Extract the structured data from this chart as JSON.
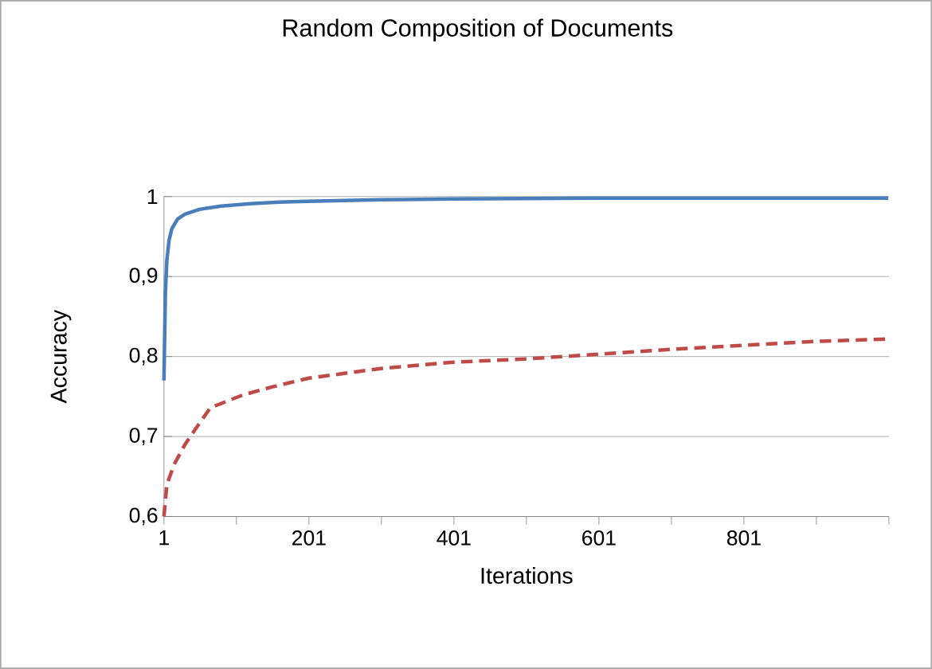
{
  "chart_data": {
    "type": "line",
    "title": "Random Composition of Documents",
    "xlabel": "Iterations",
    "ylabel": "Accuracy",
    "xlim": [
      1,
      1001
    ],
    "xticks": [
      1,
      {
        "value": 101,
        "label": null
      },
      201,
      {
        "value": 301,
        "label": null
      },
      401,
      {
        "value": 501,
        "label": null
      },
      601,
      {
        "value": 701,
        "label": null
      },
      801,
      {
        "value": 901,
        "label": null
      },
      {
        "value": 1001,
        "label": null
      }
    ],
    "ylim": [
      0.6,
      1
    ],
    "yticks": [
      {
        "value": 0.6,
        "label": "0,6"
      },
      {
        "value": 0.7,
        "label": "0,7"
      },
      {
        "value": 0.8,
        "label": "0,8"
      },
      {
        "value": 0.9,
        "label": "0,9"
      },
      {
        "value": 1,
        "label": "1"
      }
    ],
    "grid": "y",
    "legend": false,
    "marker": "none",
    "series": [
      {
        "color": "#4a7ebb",
        "line_style": "solid",
        "x": [
          1,
          3,
          5,
          8,
          12,
          20,
          30,
          50,
          80,
          120,
          160,
          200,
          300,
          400,
          600,
          800,
          1000
        ],
        "values": [
          0.77,
          0.88,
          0.92,
          0.945,
          0.96,
          0.972,
          0.978,
          0.984,
          0.988,
          0.991,
          0.993,
          0.994,
          0.996,
          0.997,
          0.998,
          0.998,
          0.998
        ]
      },
      {
        "color": "#be4b48",
        "line_style": "dashed",
        "x": [
          1,
          5,
          15,
          30,
          45,
          65,
          110,
          150,
          201,
          300,
          401,
          500,
          601,
          700,
          801,
          900,
          1000
        ],
        "values": [
          0.6,
          0.64,
          0.665,
          0.69,
          0.71,
          0.736,
          0.752,
          0.762,
          0.773,
          0.785,
          0.793,
          0.797,
          0.803,
          0.809,
          0.814,
          0.819,
          0.822
        ]
      }
    ]
  }
}
